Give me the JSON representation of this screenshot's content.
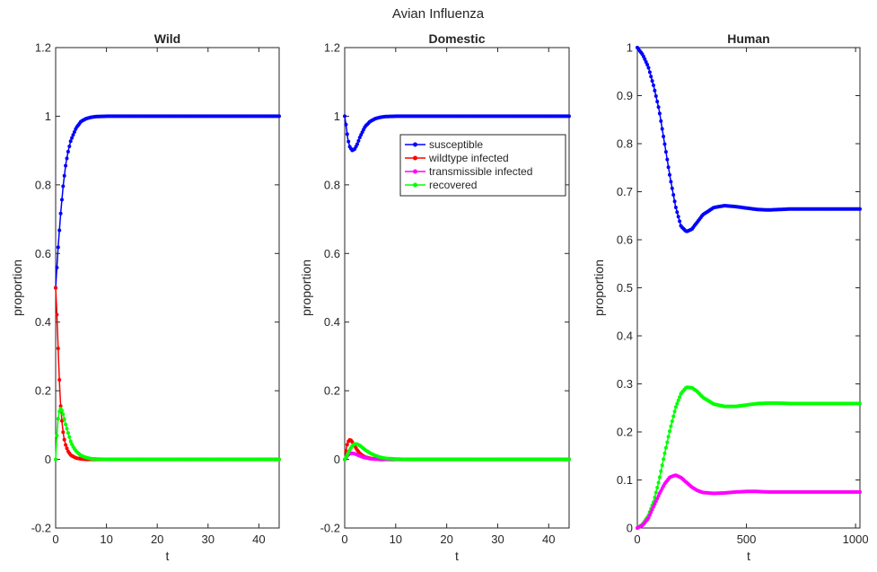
{
  "figure_title": "Avian Influenza",
  "colors": {
    "susceptible": "#0000ff",
    "wildtype_infected": "#ff0000",
    "transmissible_infected": "#ff00ff",
    "recovered": "#00ff00",
    "axis": "#262626"
  },
  "chart_data": [
    {
      "type": "line",
      "title": "Wild",
      "xlabel": "t",
      "ylabel": "proportion",
      "xlim": [
        0,
        44
      ],
      "ylim": [
        -0.2,
        1.2
      ],
      "xticks": [
        0,
        10,
        20,
        30,
        40
      ],
      "yticks": [
        -0.2,
        0,
        0.2,
        0.4,
        0.6,
        0.8,
        1,
        1.2
      ],
      "xtick_labels": [
        "0",
        "10",
        "20",
        "30",
        "40"
      ],
      "ytick_labels": [
        "-0.2",
        "0",
        "0.2",
        "0.4",
        "0.6",
        "0.8",
        "1",
        "1.2"
      ],
      "series": [
        {
          "color_key": "susceptible",
          "x": [
            0,
            0.5,
            1,
            1.5,
            2,
            2.5,
            3,
            4,
            5,
            6,
            7,
            8,
            10,
            15,
            20,
            30,
            44
          ],
          "y": [
            0.5,
            0.62,
            0.72,
            0.8,
            0.86,
            0.9,
            0.93,
            0.965,
            0.985,
            0.993,
            0.997,
            0.999,
            1,
            1,
            1,
            1,
            1
          ]
        },
        {
          "color_key": "wildtype_infected",
          "x": [
            0,
            0.2,
            0.4,
            0.6,
            0.8,
            1,
            1.3,
            1.6,
            2,
            2.5,
            3,
            4,
            5,
            6,
            8,
            10,
            20,
            30,
            44
          ],
          "y": [
            0.5,
            0.44,
            0.36,
            0.28,
            0.21,
            0.15,
            0.1,
            0.065,
            0.04,
            0.022,
            0.012,
            0.004,
            0.001,
            0,
            0,
            0,
            0,
            0,
            0
          ]
        },
        {
          "color_key": "recovered",
          "x": [
            0,
            0.2,
            0.5,
            0.8,
            1,
            1.3,
            1.6,
            2,
            2.5,
            3,
            3.5,
            4,
            5,
            6,
            7,
            8,
            10,
            15,
            20,
            30,
            44
          ],
          "y": [
            0,
            0.06,
            0.12,
            0.145,
            0.148,
            0.14,
            0.125,
            0.1,
            0.075,
            0.05,
            0.035,
            0.024,
            0.011,
            0.005,
            0.002,
            0.001,
            0,
            0,
            0,
            0,
            0
          ]
        }
      ]
    },
    {
      "type": "line",
      "title": "Domestic",
      "xlabel": "t",
      "ylabel": "proportion",
      "xlim": [
        0,
        44
      ],
      "ylim": [
        -0.2,
        1.2
      ],
      "xticks": [
        0,
        10,
        20,
        30,
        40
      ],
      "yticks": [
        -0.2,
        0,
        0.2,
        0.4,
        0.6,
        0.8,
        1,
        1.2
      ],
      "xtick_labels": [
        "0",
        "10",
        "20",
        "30",
        "40"
      ],
      "ytick_labels": [
        "-0.2",
        "0",
        "0.2",
        "0.4",
        "0.6",
        "0.8",
        "1",
        "1.2"
      ],
      "legend": {
        "placement": "upper-right",
        "entries": [
          "susceptible",
          "wildtype infected",
          "transmissible infected",
          "recovered"
        ]
      },
      "series": [
        {
          "name": "susceptible",
          "color_key": "susceptible",
          "x": [
            0,
            0.3,
            0.6,
            1,
            1.5,
            2,
            2.5,
            3,
            3.5,
            4,
            5,
            6,
            7,
            8,
            10,
            15,
            20,
            30,
            44
          ],
          "y": [
            1,
            0.97,
            0.935,
            0.91,
            0.9,
            0.905,
            0.92,
            0.94,
            0.955,
            0.97,
            0.985,
            0.993,
            0.997,
            0.999,
            1,
            1,
            1,
            1,
            1
          ]
        },
        {
          "name": "wildtype infected",
          "color_key": "wildtype_infected",
          "x": [
            0,
            0.3,
            0.6,
            1,
            1.3,
            1.6,
            2,
            2.5,
            3,
            3.5,
            4,
            5,
            6,
            7,
            8,
            10,
            20,
            30,
            44
          ],
          "y": [
            0,
            0.03,
            0.05,
            0.057,
            0.055,
            0.048,
            0.038,
            0.026,
            0.017,
            0.011,
            0.007,
            0.003,
            0.001,
            0,
            0,
            0,
            0,
            0,
            0
          ]
        },
        {
          "name": "transmissible infected",
          "color_key": "transmissible_infected",
          "x": [
            0,
            0.5,
            1,
            1.5,
            2,
            2.5,
            3,
            3.5,
            4,
            5,
            6,
            7,
            8,
            10,
            20,
            30,
            44
          ],
          "y": [
            0,
            0.01,
            0.017,
            0.018,
            0.016,
            0.013,
            0.01,
            0.007,
            0.005,
            0.002,
            0.001,
            0,
            0,
            0,
            0,
            0,
            0
          ]
        },
        {
          "name": "recovered",
          "color_key": "recovered",
          "x": [
            0,
            0.5,
            1,
            1.5,
            2,
            2.5,
            3,
            3.5,
            4,
            5,
            6,
            7,
            8,
            9,
            10,
            12,
            15,
            20,
            30,
            44
          ],
          "y": [
            0,
            0.012,
            0.028,
            0.04,
            0.045,
            0.044,
            0.04,
            0.034,
            0.028,
            0.018,
            0.011,
            0.006,
            0.003,
            0.002,
            0.001,
            0,
            0,
            0,
            0,
            0
          ]
        }
      ]
    },
    {
      "type": "line",
      "title": "Human",
      "xlabel": "t",
      "ylabel": "proportion",
      "xlim": [
        0,
        1020
      ],
      "ylim": [
        0,
        1
      ],
      "xticks": [
        0,
        500,
        1000
      ],
      "yticks": [
        0,
        0.1,
        0.2,
        0.3,
        0.4,
        0.5,
        0.6,
        0.7,
        0.8,
        0.9,
        1
      ],
      "xtick_labels": [
        "0",
        "500",
        "1000"
      ],
      "ytick_labels": [
        "0",
        "0.1",
        "0.2",
        "0.3",
        "0.4",
        "0.5",
        "0.6",
        "0.7",
        "0.8",
        "0.9",
        "1"
      ],
      "series": [
        {
          "color_key": "susceptible",
          "x": [
            0,
            25,
            50,
            75,
            100,
            125,
            150,
            175,
            200,
            225,
            250,
            275,
            300,
            350,
            400,
            450,
            500,
            550,
            600,
            650,
            700,
            800,
            900,
            1000,
            1020
          ],
          "y": [
            1,
            0.985,
            0.96,
            0.92,
            0.87,
            0.8,
            0.73,
            0.67,
            0.628,
            0.617,
            0.622,
            0.637,
            0.652,
            0.667,
            0.671,
            0.669,
            0.666,
            0.663,
            0.662,
            0.663,
            0.664,
            0.664,
            0.664,
            0.664,
            0.664
          ]
        },
        {
          "color_key": "recovered",
          "x": [
            0,
            25,
            50,
            75,
            100,
            125,
            150,
            175,
            200,
            225,
            250,
            275,
            300,
            350,
            400,
            450,
            500,
            550,
            600,
            650,
            700,
            800,
            900,
            1000,
            1020
          ],
          "y": [
            0,
            0.008,
            0.025,
            0.055,
            0.1,
            0.155,
            0.205,
            0.25,
            0.28,
            0.293,
            0.292,
            0.284,
            0.272,
            0.258,
            0.253,
            0.253,
            0.256,
            0.259,
            0.26,
            0.26,
            0.259,
            0.259,
            0.259,
            0.259,
            0.259
          ]
        },
        {
          "color_key": "transmissible_infected",
          "x": [
            0,
            25,
            50,
            75,
            100,
            125,
            150,
            175,
            200,
            225,
            250,
            275,
            300,
            350,
            400,
            450,
            500,
            550,
            600,
            650,
            700,
            800,
            900,
            1000,
            1020
          ],
          "y": [
            0,
            0.006,
            0.02,
            0.045,
            0.07,
            0.092,
            0.106,
            0.11,
            0.105,
            0.095,
            0.085,
            0.078,
            0.074,
            0.072,
            0.073,
            0.075,
            0.076,
            0.076,
            0.075,
            0.075,
            0.075,
            0.075,
            0.075,
            0.075,
            0.075
          ]
        }
      ]
    }
  ]
}
